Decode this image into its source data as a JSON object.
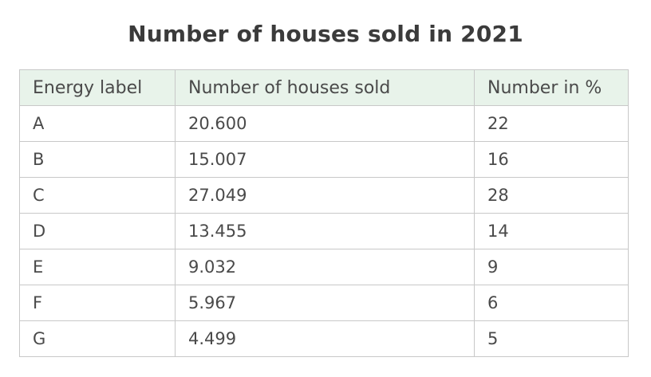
{
  "chart_data": {
    "type": "table",
    "title": "Number of houses sold in 2021",
    "columns": [
      "Energy label",
      "Number of houses sold",
      "Number in %"
    ],
    "rows": [
      [
        "A",
        "20.600",
        "22"
      ],
      [
        "B",
        "15.007",
        "16"
      ],
      [
        "C",
        "27.049",
        "28"
      ],
      [
        "D",
        "13.455",
        "14"
      ],
      [
        "E",
        "9.032",
        "9"
      ],
      [
        "F",
        "5.967",
        "6"
      ],
      [
        "G",
        "4.499",
        "5"
      ]
    ],
    "header_background": "#e8f3ea",
    "border_color": "#c8c8c8",
    "text_color": "#4a4a4a"
  }
}
